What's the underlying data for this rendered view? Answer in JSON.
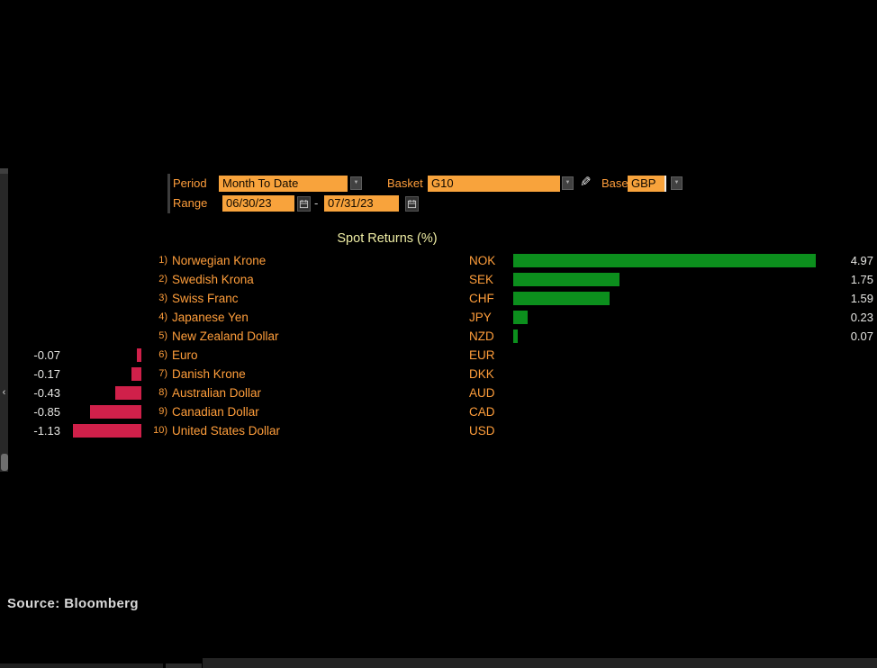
{
  "header": {
    "period_label": "Period",
    "period_value": "Month To Date",
    "basket_label": "Basket",
    "basket_value": "G10",
    "base_label": "Base",
    "base_value": "GBP",
    "range_label": "Range",
    "range_start": "06/30/23",
    "range_separator": "-",
    "range_end": "07/31/23"
  },
  "icons": {
    "dropdown": "▼",
    "pencil": "✎",
    "chevron": "‹"
  },
  "colors": {
    "field_orange": "#f8a33c",
    "label_orange": "#ff9e3b",
    "positive_green": "#0c8f1d",
    "negative_red": "#d0204a",
    "title_yellow": "#efeda4"
  },
  "chart_data": {
    "type": "bar",
    "orientation": "horizontal-diverging",
    "title": "Spot Returns (%)",
    "unit": "%",
    "xlim": [
      -1.13,
      4.97
    ],
    "rows": [
      {
        "rank": "1)",
        "name": "Norwegian Krone",
        "code": "NOK",
        "value": 4.97,
        "label": "4.97"
      },
      {
        "rank": "2)",
        "name": "Swedish Krona",
        "code": "SEK",
        "value": 1.75,
        "label": "1.75"
      },
      {
        "rank": "3)",
        "name": "Swiss Franc",
        "code": "CHF",
        "value": 1.59,
        "label": "1.59"
      },
      {
        "rank": "4)",
        "name": "Japanese Yen",
        "code": "JPY",
        "value": 0.23,
        "label": "0.23"
      },
      {
        "rank": "5)",
        "name": "New Zealand Dollar",
        "code": "NZD",
        "value": 0.07,
        "label": "0.07"
      },
      {
        "rank": "6)",
        "name": "Euro",
        "code": "EUR",
        "value": -0.07,
        "label": "-0.07"
      },
      {
        "rank": "7)",
        "name": "Danish Krone",
        "code": "DKK",
        "value": -0.17,
        "label": "-0.17"
      },
      {
        "rank": "8)",
        "name": "Australian Dollar",
        "code": "AUD",
        "value": -0.43,
        "label": "-0.43"
      },
      {
        "rank": "9)",
        "name": "Canadian Dollar",
        "code": "CAD",
        "value": -0.85,
        "label": "-0.85"
      },
      {
        "rank": "10)",
        "name": "United States Dollar",
        "code": "USD",
        "value": -1.13,
        "label": "-1.13"
      }
    ]
  },
  "source": "Source: Bloomberg"
}
